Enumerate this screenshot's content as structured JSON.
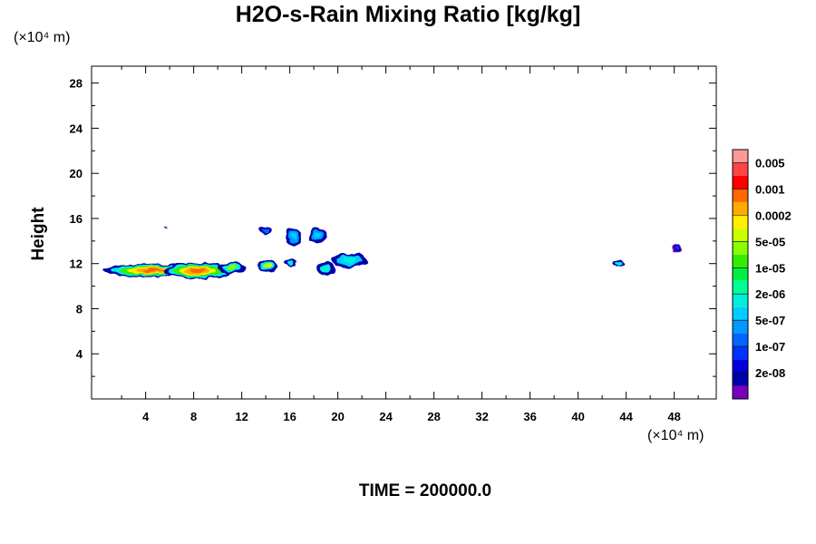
{
  "chart_data": {
    "type": "heatmap",
    "title": "H2O-s-Rain Mixing Ratio [kg/kg]",
    "ylabel": "Height",
    "x_unit": "(×10⁴ m)",
    "y_unit": "(×10⁴ m)",
    "footer": "TIME = 200000.0",
    "xlim": [
      -0.5,
      51.5
    ],
    "ylim": [
      0,
      29.5
    ],
    "x_ticks": [
      4,
      8,
      12,
      16,
      20,
      24,
      28,
      32,
      36,
      40,
      44,
      48
    ],
    "y_ticks": [
      4,
      8,
      12,
      16,
      20,
      24,
      28
    ],
    "colorbar": {
      "labels": [
        "0.005",
        "0.001",
        "0.0002",
        "5e-05",
        "1e-05",
        "2e-06",
        "5e-07",
        "1e-07",
        "2e-08"
      ],
      "colors": [
        "#ff9999",
        "#ff4444",
        "#ff0000",
        "#ff6600",
        "#ffaa00",
        "#ffee00",
        "#ccff00",
        "#88ff00",
        "#33ee00",
        "#00ee44",
        "#00ff99",
        "#00eedd",
        "#00ccff",
        "#0099ff",
        "#0066ff",
        "#0033ff",
        "#0000dd",
        "#0000aa",
        "#7700bb"
      ]
    },
    "regions": [
      {
        "x_center": 4.6,
        "y_center": 11.4,
        "x_halfwidth": 4.1,
        "y_halfwidth": 0.6,
        "levels": [
          "#0000aa",
          "#00eedd",
          "#33ee00",
          "#ffee00",
          "#ffaa00",
          "#ff6600"
        ]
      },
      {
        "x_center": 8.3,
        "y_center": 11.35,
        "x_halfwidth": 2.9,
        "y_halfwidth": 0.7,
        "levels": [
          "#0000aa",
          "#00eedd",
          "#33ee00",
          "#ffee00",
          "#ffaa00",
          "#ff6600"
        ]
      },
      {
        "x_center": 11.2,
        "y_center": 11.6,
        "x_halfwidth": 1.2,
        "y_halfwidth": 0.5,
        "levels": [
          "#0000aa",
          "#00eedd",
          "#88ff00"
        ]
      },
      {
        "x_center": 14.2,
        "y_center": 11.8,
        "x_halfwidth": 0.8,
        "y_halfwidth": 0.6,
        "levels": [
          "#0000aa",
          "#00eedd",
          "#ccff00"
        ]
      },
      {
        "x_center": 16.0,
        "y_center": 12.1,
        "x_halfwidth": 0.5,
        "y_halfwidth": 0.3,
        "levels": [
          "#0000aa",
          "#00eedd"
        ]
      },
      {
        "x_center": 14.0,
        "y_center": 15.0,
        "x_halfwidth": 0.5,
        "y_halfwidth": 0.4,
        "levels": [
          "#0000aa",
          "#0066ff"
        ]
      },
      {
        "x_center": 16.3,
        "y_center": 14.4,
        "x_halfwidth": 0.7,
        "y_halfwidth": 0.8,
        "levels": [
          "#0000aa",
          "#0099ff",
          "#00ccff"
        ]
      },
      {
        "x_center": 18.3,
        "y_center": 14.5,
        "x_halfwidth": 0.7,
        "y_halfwidth": 0.7,
        "levels": [
          "#0000aa",
          "#0099ff",
          "#00ccff"
        ]
      },
      {
        "x_center": 19.0,
        "y_center": 11.5,
        "x_halfwidth": 0.8,
        "y_halfwidth": 0.6,
        "levels": [
          "#0000aa",
          "#00eedd"
        ]
      },
      {
        "x_center": 21.0,
        "y_center": 12.3,
        "x_halfwidth": 1.5,
        "y_halfwidth": 0.6,
        "levels": [
          "#0000aa",
          "#00ccff",
          "#00eedd"
        ]
      },
      {
        "x_center": 43.3,
        "y_center": 12.0,
        "x_halfwidth": 0.45,
        "y_halfwidth": 0.3,
        "levels": [
          "#0000aa",
          "#00eedd"
        ]
      },
      {
        "x_center": 48.2,
        "y_center": 13.3,
        "x_halfwidth": 0.35,
        "y_halfwidth": 0.35,
        "levels": [
          "#7700bb",
          "#0000aa",
          "#0033ff"
        ]
      },
      {
        "x_center": 5.6,
        "y_center": 15.2,
        "x_halfwidth": 0.12,
        "y_halfwidth": 0.12,
        "levels": [
          "#7700bb"
        ]
      }
    ]
  }
}
